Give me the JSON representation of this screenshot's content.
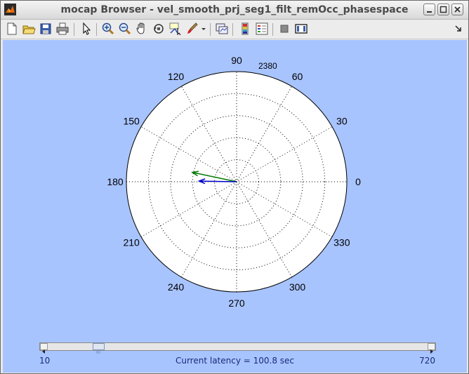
{
  "window": {
    "title": "mocap Browser - vel_smooth_prj_seg1_filt_remOcc_phasespace"
  },
  "toolbar": {
    "icons": [
      "new-file-icon",
      "open-folder-icon",
      "save-icon",
      "print-icon",
      "pointer-icon",
      "zoom-in-icon",
      "zoom-out-icon",
      "pan-hand-icon",
      "rotate-3d-icon",
      "data-cursor-icon",
      "brush-icon",
      "dropdown-arrow-icon",
      "link-plot-icon",
      "colorbar-icon",
      "legend-icon",
      "hide-plot-tools-icon",
      "show-plot-tools-icon",
      "dock-icon"
    ]
  },
  "polar": {
    "angle_labels": [
      "0",
      "30",
      "60",
      "90",
      "120",
      "150",
      "180",
      "210",
      "240",
      "270",
      "300",
      "330"
    ],
    "frame_label": "2380",
    "vectors": [
      {
        "color": "#007a00",
        "angle_deg": 168,
        "magnitude": 0.41
      },
      {
        "color": "#0000c8",
        "angle_deg": 179,
        "magnitude": 0.34
      }
    ]
  },
  "slider": {
    "min_label": "10",
    "max_label": "720",
    "position": 0.122
  },
  "status": {
    "latency_text": "Current latency = 100.8 sec"
  },
  "colors": {
    "figure_bg": "#a8c4ff",
    "text_blue": "#1a2a7a"
  }
}
